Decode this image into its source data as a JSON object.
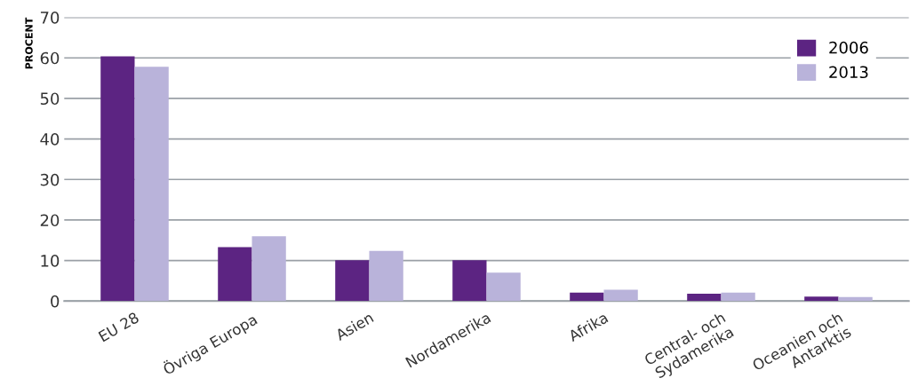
{
  "chart_data": {
    "type": "bar",
    "ylabel": "PROCENT",
    "categories": [
      "EU 28",
      "Övriga Europa",
      "Asien",
      "Nordamerika",
      "Afrika",
      "Central- och\nSydamerika",
      "Oceanien och\nAntarktis"
    ],
    "series": [
      {
        "name": "2006",
        "color": "#5c2482",
        "values": [
          60.4,
          13.3,
          10.1,
          10.1,
          2.1,
          1.8,
          1.1
        ]
      },
      {
        "name": "2013",
        "color": "#b9b3da",
        "values": [
          57.8,
          16.0,
          12.4,
          7.0,
          2.8,
          2.1,
          1.0
        ]
      }
    ],
    "ylim": [
      0,
      70
    ],
    "yticks": [
      0,
      10,
      20,
      30,
      40,
      50,
      60,
      70
    ],
    "grid": "y",
    "legend": "top right"
  }
}
